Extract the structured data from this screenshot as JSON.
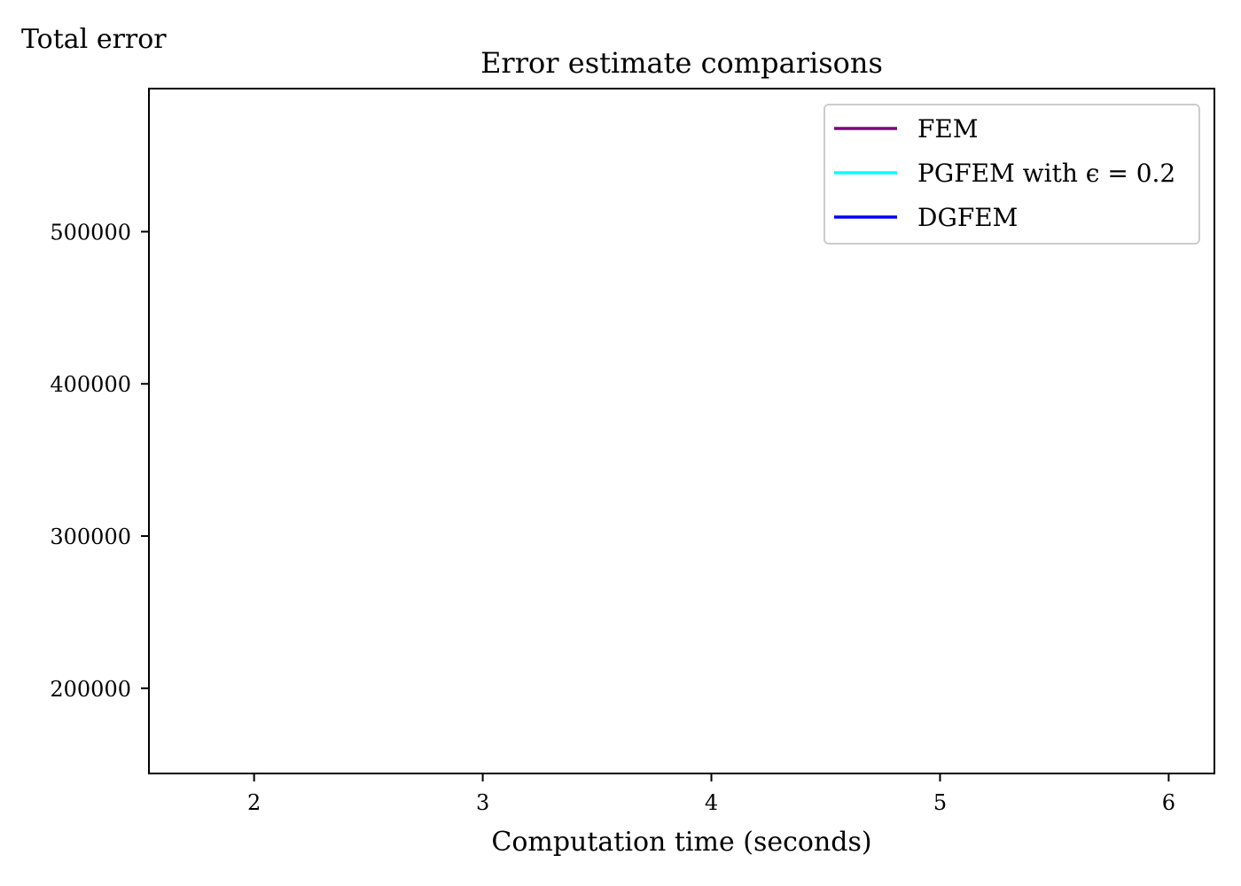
{
  "chart_data": {
    "type": "line",
    "title": "Error estimate comparisons",
    "xlabel": "Computation time (seconds)",
    "ylabel": "Total error",
    "xlim": [
      1.54,
      6.2
    ],
    "ylim": [
      144000,
      594000
    ],
    "xticks": [
      2,
      3,
      4,
      5,
      6
    ],
    "xtick_labels": [
      "2",
      "3",
      "4",
      "5",
      "6"
    ],
    "yticks": [
      200000,
      300000,
      400000,
      500000
    ],
    "ytick_labels": [
      "200000",
      "300000",
      "400000",
      "500000"
    ],
    "grid": false,
    "legend_position": "upper right",
    "series": [
      {
        "name": "FEM",
        "color": "#800080",
        "x": [],
        "y": []
      },
      {
        "name": "PGFEM with ϵ = 0.2",
        "color": "#00ffff",
        "x": [],
        "y": []
      },
      {
        "name": "DGFEM",
        "color": "#0000ff",
        "x": [],
        "y": []
      }
    ]
  }
}
